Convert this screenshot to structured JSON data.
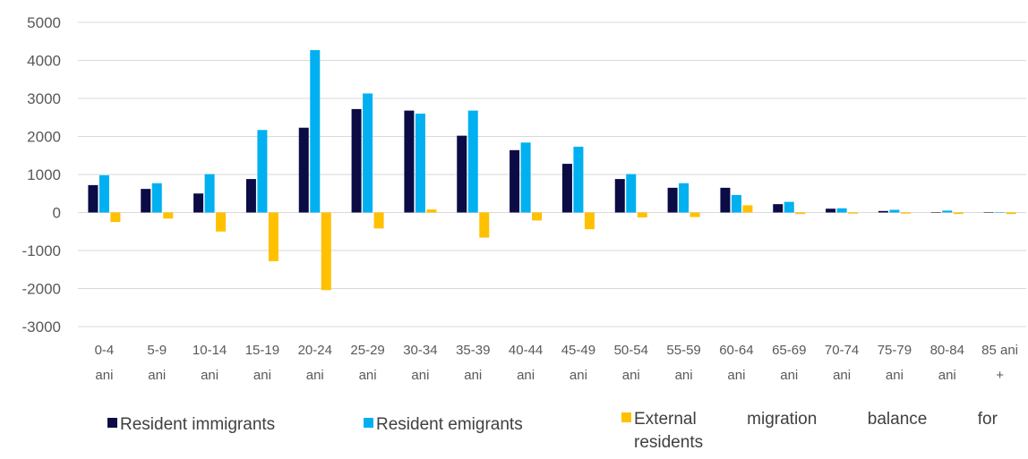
{
  "chart_data": {
    "type": "bar",
    "categories": [
      [
        "0-4",
        "ani"
      ],
      [
        "5-9",
        "ani"
      ],
      [
        "10-14",
        "ani"
      ],
      [
        "15-19",
        "ani"
      ],
      [
        "20-24",
        "ani"
      ],
      [
        "25-29",
        "ani"
      ],
      [
        "30-34",
        "ani"
      ],
      [
        "35-39",
        "ani"
      ],
      [
        "40-44",
        "ani"
      ],
      [
        "45-49",
        "ani"
      ],
      [
        "50-54",
        "ani"
      ],
      [
        "55-59",
        "ani"
      ],
      [
        "60-64",
        "ani"
      ],
      [
        "65-69",
        "ani"
      ],
      [
        "70-74",
        "ani"
      ],
      [
        "75-79",
        "ani"
      ],
      [
        "80-84",
        "ani"
      ],
      [
        "85 ani",
        "+"
      ]
    ],
    "series": [
      {
        "name": "Resident immigrants",
        "color": "#0b0b45",
        "values": [
          720,
          620,
          500,
          880,
          2230,
          2720,
          2680,
          2020,
          1640,
          1280,
          880,
          650,
          650,
          220,
          100,
          40,
          5,
          5
        ]
      },
      {
        "name": "Resident emigrants",
        "color": "#00b0f0",
        "values": [
          980,
          770,
          1010,
          2170,
          4270,
          3130,
          2600,
          2680,
          1840,
          1730,
          1010,
          770,
          460,
          280,
          110,
          70,
          50,
          10
        ]
      },
      {
        "name": "External migration balance for residents",
        "color": "#ffc000",
        "values": [
          -250,
          -160,
          -500,
          -1280,
          -2040,
          -420,
          80,
          -660,
          -210,
          -440,
          -130,
          -120,
          190,
          -40,
          -30,
          -30,
          -40,
          -40
        ]
      }
    ],
    "yticks": [
      5000,
      4000,
      3000,
      2000,
      1000,
      0,
      -1000,
      -2000,
      -3000
    ],
    "ylim": [
      -3000,
      5000
    ],
    "grid": true,
    "legend_position": "bottom",
    "title": "",
    "xlabel": "",
    "ylabel": ""
  },
  "legend": {
    "items": [
      "Resident immigrants",
      "Resident emigrants",
      "External migration balance for residents"
    ],
    "item3_line1": [
      "External",
      "migration",
      "balance",
      "for"
    ],
    "item3_line2": "residents"
  }
}
